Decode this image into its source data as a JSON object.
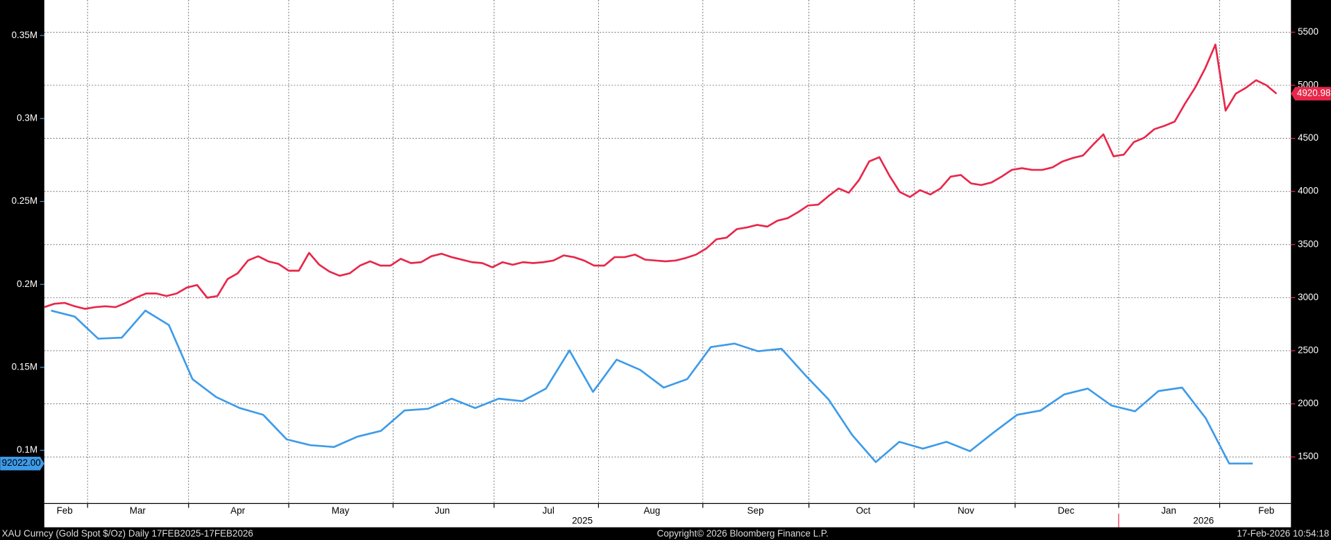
{
  "chart_data": {
    "type": "line",
    "footer": {
      "left": "XAU Curncy (Gold Spot  $/Oz) Daily 17FEB2025-17FEB2026",
      "center": "Copyright© 2026 Bloomberg Finance L.P.",
      "right": "17-Feb-2026 10:54:18"
    },
    "x_labels": [
      "Feb",
      "Mar",
      "Apr",
      "May",
      "Jun",
      "Jul",
      "Aug",
      "Sep",
      "Oct",
      "Nov",
      "Dec",
      "Jan",
      "Feb"
    ],
    "year_labels": [
      "2025",
      "2026"
    ],
    "ylim": [
      67900,
      371400
    ],
    "yticks": [
      {
        "value": 100000,
        "label": "0.1M"
      },
      {
        "value": 150000,
        "label": "0.15M"
      },
      {
        "value": 200000,
        "label": "0.2M"
      },
      {
        "value": 250000,
        "label": "0.25M"
      },
      {
        "value": 300000,
        "label": "0.3M"
      },
      {
        "value": 350000,
        "label": "0.35M"
      }
    ],
    "y2lim": [
      1061,
      5803
    ],
    "y2ticks": [
      1500,
      2000,
      2500,
      3000,
      3500,
      4000,
      4500,
      5000,
      5500
    ],
    "grid": true,
    "series": [
      {
        "color": "#e8274a",
        "axis": "y2",
        "values": [
          2911,
          2943,
          2951,
          2919,
          2895,
          2911,
          2919,
          2911,
          2951,
          2999,
          3039,
          3039,
          3015,
          3039,
          3095,
          3119,
          2999,
          3015,
          3175,
          3230,
          3350,
          3390,
          3342,
          3318,
          3254,
          3254,
          3422,
          3310,
          3246,
          3206,
          3230,
          3302,
          3342,
          3302,
          3302,
          3366,
          3326,
          3334,
          3390,
          3414,
          3382,
          3358,
          3334,
          3326,
          3286,
          3334,
          3310,
          3334,
          3326,
          3334,
          3350,
          3398,
          3382,
          3350,
          3302,
          3302,
          3382,
          3382,
          3406,
          3358,
          3350,
          3342,
          3350,
          3374,
          3406,
          3462,
          3549,
          3565,
          3645,
          3661,
          3685,
          3669,
          3725,
          3749,
          3804,
          3868,
          3876,
          3956,
          4028,
          3988,
          4107,
          4283,
          4323,
          4147,
          3996,
          3948,
          4012,
          3972,
          4028,
          4139,
          4155,
          4076,
          4060,
          4084,
          4139,
          4203,
          4219,
          4203,
          4203,
          4227,
          4283,
          4315,
          4339,
          4442,
          4538,
          4331,
          4347,
          4466,
          4506,
          4586,
          4618,
          4658,
          4825,
          4977,
          5160,
          5383,
          4761,
          4921,
          4977,
          5048,
          5001,
          4920.98
        ]
      },
      {
        "color": "#3d9be9",
        "axis": "y",
        "values": [
          184200,
          180600,
          167300,
          167900,
          184200,
          175500,
          142900,
          132100,
          125500,
          121400,
          106600,
          103100,
          102000,
          108200,
          111700,
          124000,
          125000,
          131100,
          125500,
          131100,
          129600,
          137200,
          160200,
          135200,
          154600,
          148500,
          137800,
          142900,
          162200,
          164300,
          159700,
          161200,
          145400,
          130600,
          109200,
          92900,
          105100,
          101000,
          105100,
          99500,
          110700,
          121400,
          124000,
          133700,
          137200,
          127000,
          123500,
          135700,
          137800,
          119400,
          92022,
          92022
        ],
        "value_labels": [
          null,
          null,
          null,
          null,
          null,
          null,
          null,
          null,
          null,
          null,
          null,
          null,
          null,
          null,
          null,
          null,
          null,
          null,
          null,
          null,
          null,
          null,
          null,
          null,
          null,
          null,
          null,
          null,
          null,
          null,
          null,
          null,
          null,
          null,
          null,
          null,
          null,
          null,
          null,
          null,
          null,
          null,
          null,
          null,
          null,
          null,
          null,
          null,
          null,
          null,
          null,
          "92022.00"
        ]
      }
    ]
  }
}
